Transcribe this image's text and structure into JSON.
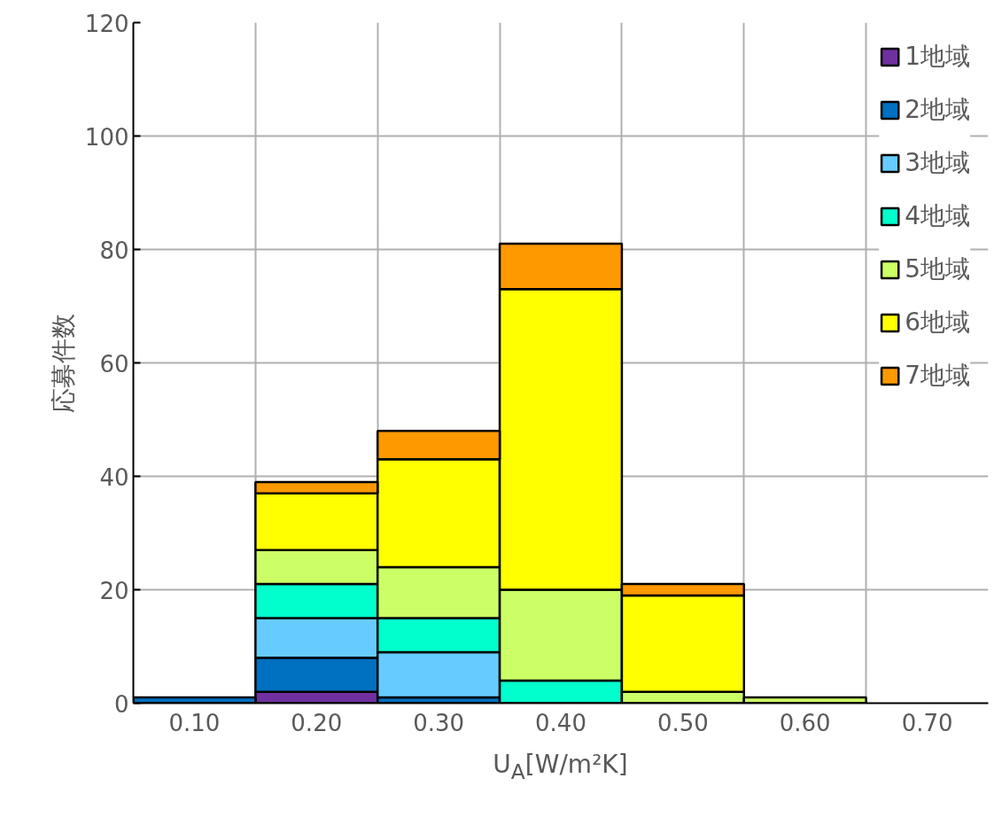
{
  "chart_data": {
    "type": "bar",
    "stacked": true,
    "xlabel": "U$_{A}$[W/m²K]",
    "ylabel": "応募件数",
    "categories": [
      "0.10",
      "0.20",
      "0.30",
      "0.40",
      "0.50",
      "0.60",
      "0.70"
    ],
    "series": [
      {
        "name": "1地域",
        "color": "#7030a0",
        "values": [
          null,
          2,
          null,
          null,
          null,
          null,
          null
        ]
      },
      {
        "name": "2地域",
        "color": "#0070c0",
        "values": [
          1,
          6,
          1,
          null,
          null,
          null,
          null
        ]
      },
      {
        "name": "3地域",
        "color": "#66ccff",
        "values": [
          null,
          7,
          8,
          null,
          null,
          null,
          null
        ]
      },
      {
        "name": "4地域",
        "color": "#00ffcc",
        "values": [
          null,
          6,
          6,
          4,
          null,
          null,
          null
        ]
      },
      {
        "name": "5地域",
        "color": "#ccff66",
        "values": [
          null,
          6,
          9,
          16,
          2,
          1,
          null
        ]
      },
      {
        "name": "6地域",
        "color": "#ffff00",
        "values": [
          null,
          10,
          19,
          53,
          17,
          null,
          null
        ]
      },
      {
        "name": "7地域",
        "color": "#ff9900",
        "values": [
          null,
          2,
          5,
          8,
          2,
          null,
          null
        ]
      }
    ],
    "ylim": [
      0,
      120
    ],
    "yticks": [
      0,
      20,
      40,
      60,
      80,
      100,
      120
    ],
    "grid": true,
    "legend": "top right"
  }
}
